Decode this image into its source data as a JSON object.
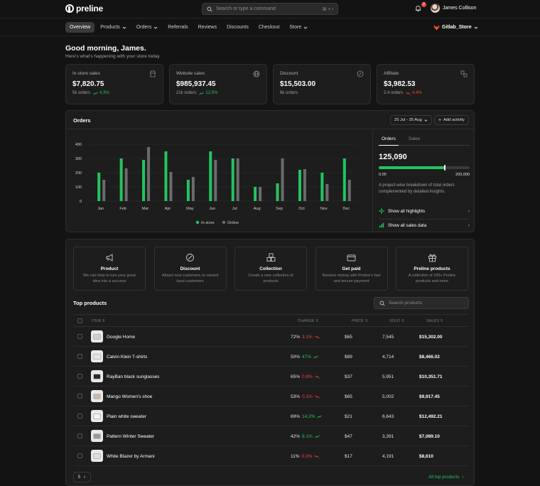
{
  "app": {
    "name": "preline"
  },
  "search": {
    "placeholder": "Search or type a command",
    "shortcut": "⌘ + /"
  },
  "notifications": {
    "count": "2"
  },
  "user": {
    "name": "James Collison"
  },
  "nav": {
    "items": [
      {
        "label": "Overview",
        "active": true,
        "dropdown": false
      },
      {
        "label": "Products",
        "active": false,
        "dropdown": true
      },
      {
        "label": "Orders",
        "active": false,
        "dropdown": true
      },
      {
        "label": "Referrals",
        "active": false,
        "dropdown": false
      },
      {
        "label": "Reviews",
        "active": false,
        "dropdown": false
      },
      {
        "label": "Discounts",
        "active": false,
        "dropdown": false
      },
      {
        "label": "Checkout",
        "active": false,
        "dropdown": false
      },
      {
        "label": "Store",
        "active": false,
        "dropdown": true
      }
    ],
    "store": "Gitlab_Store"
  },
  "greeting": {
    "title": "Good morning, James.",
    "subtitle": "Here's what's happening with your store today."
  },
  "stats": [
    {
      "label": "In-store sales",
      "value": "$7,820.75",
      "sub": "5k orders",
      "change": "4.3%",
      "trend": "up",
      "icon": "store-icon"
    },
    {
      "label": "Website sales",
      "value": "$985,937.45",
      "sub": "21k orders",
      "change": "12.5%",
      "trend": "up",
      "icon": "globe-icon"
    },
    {
      "label": "Discount",
      "value": "$15,503.00",
      "sub": "6k orders",
      "change": "",
      "trend": "none",
      "icon": "percent-icon"
    },
    {
      "label": "Affiliate",
      "value": "$3,982.53",
      "sub": "2.4 orders",
      "change": "4.4%",
      "trend": "down",
      "icon": "affiliate-icon"
    }
  ],
  "orders": {
    "title": "Orders",
    "date_range": "25 Jul - 25 Aug",
    "add_activity": "Add activity",
    "tabs": [
      "Orders",
      "Sales"
    ],
    "total": "125,090",
    "progress": 0.73,
    "progress_min": "0.00",
    "progress_max": "200,000",
    "description": "A project-wise breakdown of total orders complemented by detailed insights.",
    "links": [
      "Show all highlights",
      "Show all sales data"
    ]
  },
  "chart_data": {
    "type": "bar",
    "categories": [
      "Jan",
      "Feb",
      "Mar",
      "Apr",
      "May",
      "Jun",
      "Jul",
      "Aug",
      "Sep",
      "Oct",
      "Nov",
      "Dec"
    ],
    "series": [
      {
        "name": "In-store",
        "color": "#22c55e",
        "values": [
          200,
          300,
          290,
          350,
          150,
          350,
          300,
          100,
          125,
          220,
          200,
          300
        ]
      },
      {
        "name": "Online",
        "color": "#6b6b6b",
        "values": [
          150,
          230,
          380,
          205,
          170,
          290,
          300,
          100,
          300,
          225,
          120,
          150
        ]
      }
    ],
    "yticks": [
      0,
      100,
      200,
      300,
      400
    ],
    "ylim": [
      0,
      400
    ],
    "legend_position": "bottom"
  },
  "quick_actions": [
    {
      "title": "Product",
      "desc": "We can help to turn your great idea into a success",
      "icon": "megaphone-icon"
    },
    {
      "title": "Discount",
      "desc": "Attract new customers or reward loyal customers",
      "icon": "discount-icon"
    },
    {
      "title": "Collection",
      "desc": "Create a new collection of products",
      "icon": "collection-icon"
    },
    {
      "title": "Get paid",
      "desc": "Receive money with Preline's fast and secure payment",
      "icon": "card-icon"
    },
    {
      "title": "Preline products",
      "desc": "A collection of 100+ Preline products and more",
      "icon": "gift-icon"
    }
  ],
  "top_products": {
    "title": "Top products",
    "search_placeholder": "Search products",
    "columns": [
      "ITEM",
      "CHANGE",
      "PRICE",
      "SOLD",
      "SALES"
    ],
    "rows": [
      {
        "name": "Google Home",
        "change": "72%",
        "delta": "3.1%",
        "trend": "down",
        "price": "$65",
        "sold": "7,545",
        "sales": "$15,302.00",
        "thumb": "#cfcfcf"
      },
      {
        "name": "Calvin Klein T-shirts",
        "change": "50%",
        "delta": "47%",
        "trend": "up",
        "price": "$89",
        "sold": "4,714",
        "sales": "$8,466.02",
        "thumb": "#e4e4e4"
      },
      {
        "name": "RayBan black sunglasses",
        "change": "65%",
        "delta": "0.9%",
        "trend": "down",
        "price": "$37",
        "sold": "5,951",
        "sales": "$10,351.71",
        "thumb": "#2b2b2b"
      },
      {
        "name": "Mango Women's shoe",
        "change": "53%",
        "delta": "0.1%",
        "trend": "down",
        "price": "$65",
        "sold": "5,002",
        "sales": "$9,917.45",
        "thumb": "#c9b8a8"
      },
      {
        "name": "Plain white sweater",
        "change": "69%",
        "delta": "14.2%",
        "trend": "up",
        "price": "$21",
        "sold": "6,643",
        "sales": "$12,492.21",
        "thumb": "#f2f2f2"
      },
      {
        "name": "Pattern Winter Sweater",
        "change": "42%",
        "delta": "8.1%",
        "trend": "up",
        "price": "$47",
        "sold": "3,391",
        "sales": "$7,089.10",
        "thumb": "#9a9a9a"
      },
      {
        "name": "White Blazer by Armani",
        "change": "11%",
        "delta": "0.3%",
        "trend": "down",
        "price": "$17",
        "sold": "4,191",
        "sales": "$8,610",
        "thumb": "#dedede"
      }
    ],
    "page_size": "5",
    "all_link": "All top products"
  }
}
